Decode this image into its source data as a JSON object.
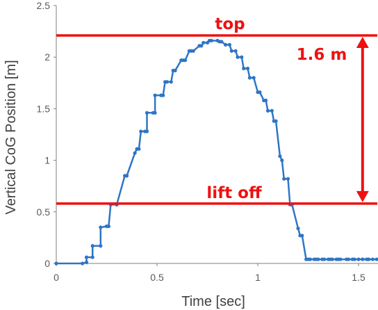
{
  "chart_data": {
    "type": "line",
    "xlabel": "Time [sec]",
    "ylabel": "Vertical CoG Position [m]",
    "xlim": [
      0,
      1.6
    ],
    "ylim": [
      0,
      2.5
    ],
    "xticks": [
      "0",
      "0.5",
      "1",
      "1.5"
    ],
    "xtick_values": [
      0,
      0.5,
      1,
      1.5
    ],
    "yticks": [
      "0",
      "0.5",
      "1",
      "1.5",
      "2",
      "2.5"
    ],
    "ytick_values": [
      0,
      0.5,
      1,
      1.5,
      2,
      2.5
    ],
    "grid": false,
    "series_color": "#2e75c5",
    "annotation_color": "#ee1111",
    "series": [
      {
        "x": [
          0,
          0.13,
          0.15,
          0.15,
          0.18,
          0.18,
          0.22,
          0.22,
          0.25,
          0.25,
          0.26,
          0.27,
          0.3,
          0.3,
          0.34,
          0.35,
          0.35,
          0.39,
          0.4,
          0.41,
          0.42,
          0.44,
          0.45,
          0.45,
          0.48,
          0.49,
          0.49,
          0.52,
          0.53,
          0.54,
          0.55,
          0.57,
          0.58,
          0.59,
          0.62,
          0.63,
          0.64,
          0.66,
          0.67,
          0.68,
          0.71,
          0.72,
          0.73,
          0.75,
          0.76,
          0.77,
          0.8,
          0.81,
          0.82,
          0.84,
          0.86,
          0.87,
          0.89,
          0.9,
          0.92,
          0.93,
          0.95,
          0.96,
          0.98,
          1.0,
          1.01,
          1.03,
          1.04,
          1.05,
          1.07,
          1.08,
          1.09,
          1.11,
          1.12,
          1.13,
          1.15,
          1.16,
          1.17,
          1.2,
          1.21,
          1.22,
          1.24,
          1.25,
          1.26,
          1.28,
          1.29,
          1.3,
          1.32,
          1.33,
          1.35,
          1.36,
          1.37,
          1.39,
          1.4,
          1.41,
          1.44,
          1.45,
          1.47,
          1.48,
          1.5,
          1.52,
          1.52,
          1.54,
          1.55,
          1.55,
          1.57,
          1.59
        ],
        "y": [
          0,
          0,
          0.01,
          0.06,
          0.06,
          0.17,
          0.17,
          0.35,
          0.36,
          0.36,
          0.36,
          0.57,
          0.57,
          0.57,
          0.85,
          0.85,
          0.85,
          1.07,
          1.11,
          1.11,
          1.28,
          1.28,
          1.28,
          1.46,
          1.46,
          1.46,
          1.63,
          1.63,
          1.63,
          1.76,
          1.76,
          1.76,
          1.87,
          1.87,
          1.97,
          1.97,
          1.97,
          2.06,
          2.06,
          2.06,
          2.11,
          2.11,
          2.14,
          2.14,
          2.16,
          2.16,
          2.16,
          2.15,
          2.15,
          2.12,
          2.12,
          2.06,
          2.06,
          2.0,
          2.0,
          1.89,
          1.89,
          1.8,
          1.8,
          1.66,
          1.66,
          1.58,
          1.58,
          1.48,
          1.48,
          1.38,
          1.38,
          1.04,
          1.0,
          0.82,
          0.82,
          0.57,
          0.57,
          0.34,
          0.27,
          0.27,
          0.04,
          0.04,
          0.04,
          0.04,
          0.04,
          0.04,
          0.04,
          0.04,
          0.04,
          0.04,
          0.04,
          0.04,
          0.04,
          0.04,
          0.04,
          0.04,
          0.04,
          0.04,
          0.04,
          0.04,
          0.04,
          0.04,
          0.04,
          0.04,
          0.04,
          0.04
        ]
      }
    ],
    "annotations": {
      "top_label": "top",
      "top_y": 2.21,
      "liftoff_label": "lift off",
      "liftoff_y": 0.58,
      "height_label": "1.6 m",
      "arrow_x": 1.52
    }
  }
}
